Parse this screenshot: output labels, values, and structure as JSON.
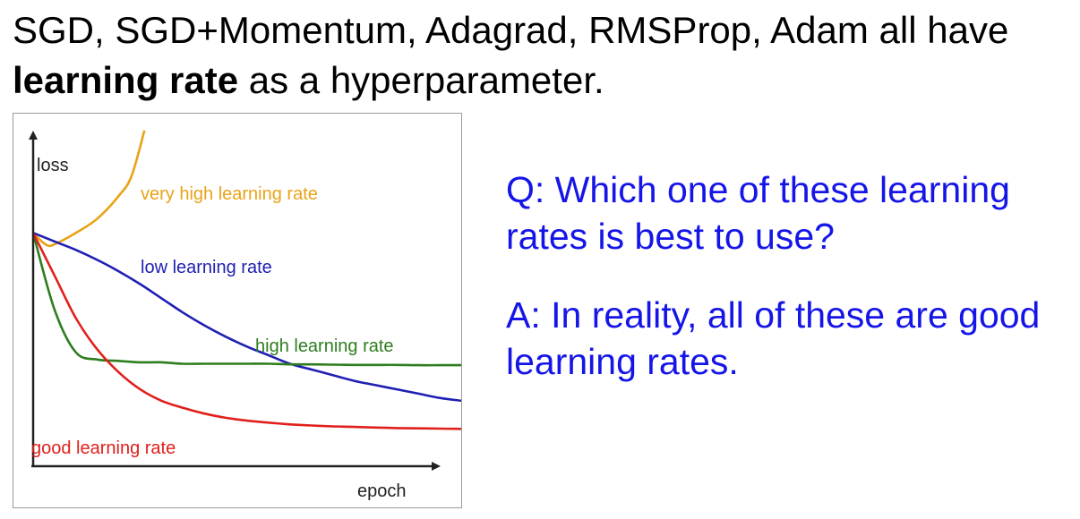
{
  "slide": {
    "title_line1": "SGD, SGD+Momentum, Adagrad, RMSProp, Adam all have",
    "title_bold": "learning rate",
    "title_rest": " as a hyperparameter.",
    "question": "Q: Which one of these learning rates is best to use?",
    "answer": "A: In reality, all of these are good learning rates."
  },
  "chart_data": {
    "type": "line",
    "title": "",
    "xlabel": "epoch",
    "ylabel": "loss",
    "grid": false,
    "legend": "none",
    "x": [
      0,
      0.05,
      0.1,
      0.15,
      0.2,
      0.25,
      0.3,
      0.35,
      0.4,
      0.45,
      0.5,
      0.55,
      0.6,
      0.65,
      0.7,
      0.75,
      0.8,
      0.85,
      0.9,
      0.95,
      1.0
    ],
    "series": [
      {
        "name": "very high learning rate",
        "color": "#e8a317",
        "x": [
          0,
          0.02,
          0.035,
          0.05,
          0.1,
          0.15,
          0.2,
          0.23,
          0.26
        ],
        "values": [
          0.82,
          0.79,
          0.775,
          0.78,
          0.82,
          0.87,
          0.95,
          1.02,
          1.18
        ]
      },
      {
        "name": "low learning rate",
        "color": "#1f1fb4",
        "values": [
          0.82,
          0.79,
          0.76,
          0.725,
          0.685,
          0.64,
          0.59,
          0.54,
          0.495,
          0.455,
          0.42,
          0.39,
          0.36,
          0.34,
          0.32,
          0.3,
          0.285,
          0.27,
          0.255,
          0.24,
          0.23
        ]
      },
      {
        "name": "high learning rate",
        "color": "#2e7d1e",
        "values": [
          0.82,
          0.55,
          0.4,
          0.375,
          0.37,
          0.365,
          0.365,
          0.36,
          0.36,
          0.36,
          0.36,
          0.36,
          0.358,
          0.358,
          0.357,
          0.356,
          0.356,
          0.356,
          0.355,
          0.355,
          0.355
        ]
      },
      {
        "name": "good learning rate",
        "color": "#e0201b",
        "values": [
          0.82,
          0.67,
          0.52,
          0.41,
          0.33,
          0.27,
          0.23,
          0.205,
          0.185,
          0.17,
          0.16,
          0.153,
          0.147,
          0.143,
          0.14,
          0.138,
          0.136,
          0.134,
          0.133,
          0.132,
          0.131
        ]
      }
    ]
  }
}
